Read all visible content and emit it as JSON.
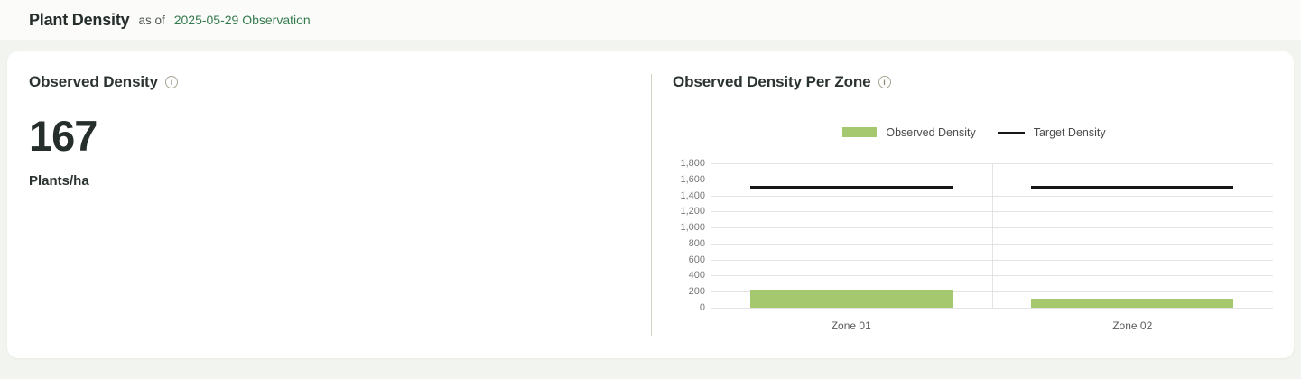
{
  "page": {
    "title": "Plant Density",
    "as_of_label": "as of",
    "observation_link": "2025-05-29 Observation"
  },
  "kpi_panel": {
    "title": "Observed Density",
    "value": "167",
    "unit": "Plants/ha"
  },
  "zone_panel": {
    "title": "Observed Density Per Zone"
  },
  "icons": {
    "info_glyph": "i"
  },
  "chart_data": {
    "type": "bar",
    "title": "Observed Density Per Zone",
    "categories": [
      "Zone 01",
      "Zone 02"
    ],
    "series": [
      {
        "name": "Observed Density",
        "type": "bar",
        "color": "#a5c76d",
        "values": [
          222,
          112
        ]
      },
      {
        "name": "Target Density",
        "type": "line",
        "color": "#161616",
        "values": [
          1500,
          1500
        ]
      }
    ],
    "ylim": [
      0,
      1800
    ],
    "ytick_step": 200,
    "grid": true,
    "legend_position": "top",
    "xlabel": "",
    "ylabel": ""
  },
  "colors": {
    "accent_green_link": "#357a4d",
    "bar_green": "#a5c76d",
    "target_line_black": "#161616",
    "page_bg": "#f2f4f0",
    "header_bg": "#fbfcfa",
    "card_bg": "#ffffff",
    "divider_tan": "#d6d2c4",
    "grid_gray": "#e3e3e3"
  }
}
